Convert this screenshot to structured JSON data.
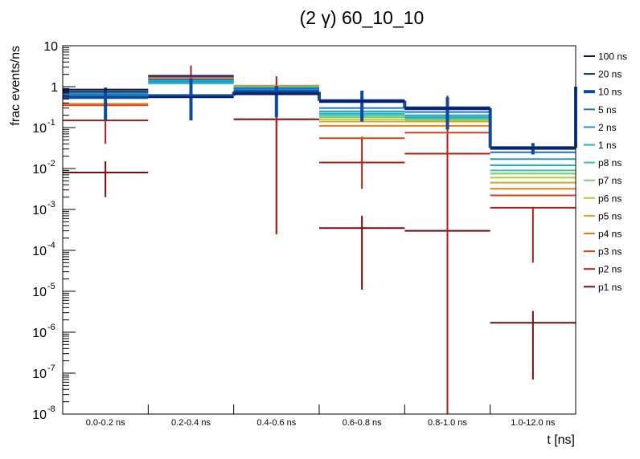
{
  "chart_data": {
    "type": "line",
    "title": "(2 γ) 60_10_10",
    "xlabel": "t [ns]",
    "ylabel": "frac events/ns",
    "yscale": "log",
    "ylim": [
      1e-08,
      10
    ],
    "ytick_labels": [
      {
        "base": "10",
        "exp": "-8"
      },
      {
        "base": "10",
        "exp": "-7"
      },
      {
        "base": "10",
        "exp": "-6"
      },
      {
        "base": "10",
        "exp": "-5"
      },
      {
        "base": "10",
        "exp": "-4"
      },
      {
        "base": "10",
        "exp": "-3"
      },
      {
        "base": "10",
        "exp": "-2"
      },
      {
        "base": "10",
        "exp": "-1"
      },
      {
        "base": "1",
        "exp": ""
      },
      {
        "base": "10",
        "exp": ""
      }
    ],
    "categories": [
      "0.0-0.2 ns",
      "0.2-0.4 ns",
      "0.4-0.6 ns",
      "0.6-0.8 ns",
      "0.8-1.0 ns",
      "1.0-12.0 ns"
    ],
    "legend_position": "right",
    "grid": false,
    "series": [
      {
        "name": "100 ns",
        "color": "#0b1a5e",
        "width": 2,
        "values": [
          0.85,
          0.55,
          0.65,
          0.45,
          0.3,
          0.032
        ]
      },
      {
        "name": "20 ns",
        "color": "#0e2a82",
        "width": 2,
        "values": [
          0.75,
          1.85,
          0.7,
          0.42,
          0.28,
          0.03
        ]
      },
      {
        "name": "10 ns",
        "color": "#0d4a9c",
        "width": 4,
        "values": [
          0.55,
          0.6,
          0.75,
          0.45,
          0.3,
          0.032
        ],
        "errors": [
          [
            0.15,
            0.95
          ],
          [
            0.15,
            1.6
          ],
          [
            0.18,
            1.05
          ],
          [
            0.14,
            0.8
          ],
          [
            0.09,
            0.55
          ],
          [
            0.022,
            0.042
          ]
        ]
      },
      {
        "name": "5 ns",
        "color": "#1f74c0",
        "width": 2,
        "values": [
          0.65,
          1.5,
          0.9,
          0.3,
          0.24,
          0.025
        ]
      },
      {
        "name": "2 ns",
        "color": "#2496c8",
        "width": 2,
        "values": [
          0.6,
          1.35,
          0.85,
          0.25,
          0.2,
          0.017
        ]
      },
      {
        "name": "1 ns",
        "color": "#1eb0c4",
        "width": 2,
        "values": [
          0.7,
          1.25,
          0.95,
          0.22,
          0.18,
          0.012
        ]
      },
      {
        "name": "p8 ns",
        "color": "#3cc4a8",
        "width": 2,
        "values": [
          0.72,
          1.2,
          0.95,
          0.2,
          0.17,
          0.009
        ]
      },
      {
        "name": "p7 ns",
        "color": "#7ccc6a",
        "width": 2,
        "values": [
          0.74,
          1.4,
          0.98,
          0.18,
          0.16,
          0.0075
        ]
      },
      {
        "name": "p6 ns",
        "color": "#b4c83c",
        "width": 2,
        "values": [
          0.76,
          1.5,
          1.0,
          0.16,
          0.15,
          0.006
        ]
      },
      {
        "name": "p5 ns",
        "color": "#d2a82a",
        "width": 2,
        "values": [
          0.78,
          1.55,
          1.02,
          0.14,
          0.14,
          0.0045
        ]
      },
      {
        "name": "p4 ns",
        "color": "#e67e1e",
        "width": 2,
        "values": [
          0.38,
          1.6,
          1.05,
          0.11,
          0.11,
          0.0032
        ]
      },
      {
        "name": "p3 ns",
        "color": "#d2461e",
        "width": 2,
        "values": [
          0.35,
          1.65,
          1.05,
          0.055,
          0.075,
          0.0022
        ]
      },
      {
        "name": "p2 ns",
        "color": "#b41e14",
        "width": 2,
        "values": [
          0.15,
          1.7,
          0.8,
          0.014,
          0.023,
          0.0011
        ],
        "errors": [
          [
            0.04,
            0.35
          ],
          [
            0.9,
            3.3
          ],
          [
            0.00025,
            1.8
          ],
          [
            0.0032,
            0.06
          ],
          [
            1e-08,
            0.1
          ],
          [
            5e-05,
            0.0011
          ]
        ]
      },
      {
        "name": "p1 ns",
        "color": "#780a0a",
        "width": 2,
        "values": [
          0.008,
          1.75,
          0.16,
          0.00035,
          0.0003,
          1.7e-06
        ],
        "errors": [
          [
            0.002,
            0.015
          ],
          [
            0.9,
            2.5
          ],
          [
            0.00025,
            1.3
          ],
          [
            1.1e-05,
            0.0007
          ],
          [
            1e-08,
            0.6
          ],
          [
            7e-08,
            3.3e-06
          ]
        ]
      }
    ]
  }
}
